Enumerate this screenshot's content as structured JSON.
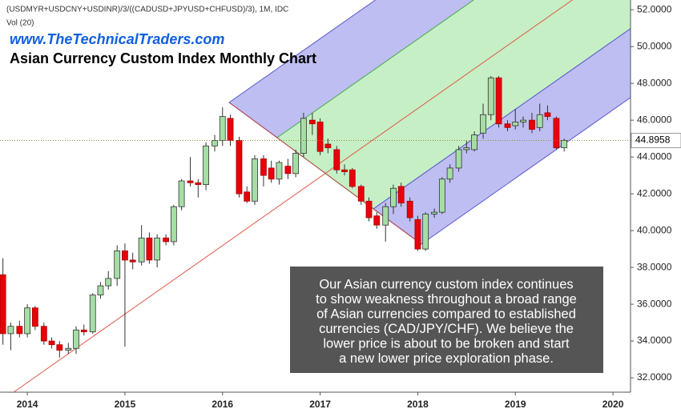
{
  "chart_data": {
    "type": "candlestick",
    "header": "(USDMYR+USDCNY+USDINR)/3/((CADUSD+JPYUSD+CHFUSD)/3), 1M, IDC",
    "volume_label": "Vol (20)",
    "website": "www.TheTechnicalTraders.com",
    "title": "Asian Currency Custom Index Monthly Chart",
    "annotation": [
      "Our Asian currency custom index continues",
      "to show weakness throughout a broad range",
      "of Asian currencies compared to established",
      "currencies (CAD/JPY/CHF).  We believe the",
      "lower price is about to be broken and start",
      "a new lower price exploration phase."
    ],
    "last_price": 44.8958,
    "x": [
      2013.75,
      2013.83,
      2013.92,
      2014,
      2014.08,
      2014.17,
      2014.25,
      2014.33,
      2014.42,
      2014.5,
      2014.58,
      2014.67,
      2014.75,
      2014.83,
      2014.92,
      2015,
      2015.08,
      2015.17,
      2015.25,
      2015.33,
      2015.42,
      2015.5,
      2015.58,
      2015.67,
      2015.75,
      2015.83,
      2015.92,
      2016,
      2016.08,
      2016.17,
      2016.25,
      2016.33,
      2016.42,
      2016.5,
      2016.58,
      2016.67,
      2016.75,
      2016.83,
      2016.92,
      2017,
      2017.08,
      2017.17,
      2017.25,
      2017.33,
      2017.42,
      2017.5,
      2017.58,
      2017.67,
      2017.75,
      2017.83,
      2017.92,
      2018,
      2018.08,
      2018.17,
      2018.25,
      2018.33,
      2018.42,
      2018.5,
      2018.58,
      2018.67,
      2018.75,
      2018.83,
      2018.92,
      2019,
      2019.08,
      2019.17,
      2019.25,
      2019.33,
      2019.42,
      2019.5
    ],
    "open": [
      37.6,
      34.4,
      34.8,
      34.4,
      35.8,
      34.8,
      34.0,
      33.8,
      33.5,
      33.6,
      34.6,
      34.5,
      36.5,
      37.0,
      37.4,
      38.9,
      38.4,
      38.3,
      39.6,
      38.4,
      39.6,
      39.4,
      41.3,
      42.7,
      42.6,
      42.5,
      44.6,
      44.9,
      46.1,
      44.9,
      42.1,
      41.6,
      43.9,
      43.4,
      42.8,
      43.5,
      43.1,
      44.2,
      46.0,
      45.9,
      44.7,
      44.4,
      43.3,
      43.3,
      42.4,
      41.6,
      40.8,
      40.3,
      41.3,
      42.4,
      41.6,
      40.6,
      39.0,
      40.9,
      41.0,
      42.8,
      43.4,
      44.4,
      44.4,
      45.3,
      46.3,
      48.3,
      45.8,
      45.7,
      45.9,
      46.0,
      45.6,
      46.4,
      46.1,
      44.5
    ],
    "high": [
      38.5,
      35.0,
      35.1,
      36.0,
      35.9,
      35.0,
      34.2,
      34.0,
      33.9,
      34.8,
      34.9,
      36.6,
      37.2,
      37.8,
      39.2,
      39.3,
      38.8,
      40.3,
      39.9,
      39.8,
      39.8,
      41.4,
      42.8,
      44.0,
      42.8,
      44.8,
      45.2,
      46.7,
      46.3,
      45.1,
      42.4,
      44.1,
      44.1,
      43.8,
      43.8,
      43.9,
      44.4,
      46.4,
      46.4,
      46.1,
      45.0,
      44.6,
      43.6,
      43.4,
      42.5,
      41.8,
      41.0,
      41.5,
      42.5,
      42.6,
      41.8,
      40.8,
      41.0,
      41.2,
      42.9,
      43.6,
      44.6,
      44.9,
      45.4,
      46.9,
      48.4,
      48.4,
      46.0,
      46.6,
      46.2,
      46.4,
      46.9,
      46.8,
      46.2,
      45.0
    ],
    "low": [
      33.8,
      33.5,
      34.2,
      34.2,
      34.6,
      33.8,
      33.6,
      33.1,
      33.3,
      33.3,
      34.3,
      34.4,
      36.3,
      36.8,
      37.0,
      33.7,
      37.9,
      38.1,
      38.2,
      38.0,
      39.2,
      39.2,
      41.1,
      42.4,
      41.8,
      42.2,
      44.3,
      44.6,
      44.6,
      41.8,
      41.5,
      41.4,
      42.4,
      42.6,
      42.5,
      42.8,
      42.9,
      44.0,
      45.2,
      44.1,
      44.2,
      43.1,
      43.0,
      42.3,
      41.4,
      40.5,
      40.1,
      39.4,
      40.9,
      41.3,
      40.5,
      38.9,
      38.9,
      40.7,
      40.9,
      42.6,
      43.2,
      44.2,
      44.3,
      45.0,
      46.0,
      45.6,
      45.4,
      45.5,
      45.6,
      45.3,
      45.4,
      46.0,
      44.4,
      44.3
    ],
    "close": [
      34.4,
      34.8,
      34.4,
      35.8,
      34.8,
      34.0,
      33.8,
      33.5,
      33.6,
      34.6,
      34.5,
      36.5,
      37.0,
      37.4,
      38.9,
      38.4,
      38.3,
      39.6,
      38.4,
      39.6,
      39.4,
      41.3,
      42.7,
      42.6,
      42.5,
      44.6,
      44.9,
      46.2,
      44.9,
      42.0,
      41.6,
      43.9,
      43.0,
      42.8,
      43.7,
      43.1,
      44.2,
      46.1,
      45.8,
      44.3,
      44.5,
      43.3,
      43.2,
      42.4,
      41.6,
      40.7,
      40.3,
      41.3,
      42.3,
      41.5,
      40.7,
      39.0,
      40.9,
      41.0,
      42.8,
      43.4,
      44.4,
      44.5,
      45.2,
      46.3,
      48.3,
      45.8,
      45.6,
      45.9,
      46.0,
      45.5,
      46.3,
      46.2,
      44.5,
      44.9
    ],
    "up_color": "#a5dea5",
    "down_color": "#e8000b",
    "xlim": [
      2013.72,
      2020.18
    ],
    "ylim": [
      31.22,
      52.53
    ],
    "yticks": [
      {
        "value": 32,
        "label": "32.0000"
      },
      {
        "value": 34,
        "label": "34.0000"
      },
      {
        "value": 36,
        "label": "36.0000"
      },
      {
        "value": 38,
        "label": "38.0000"
      },
      {
        "value": 40,
        "label": "40.0000"
      },
      {
        "value": 42,
        "label": "42.0000"
      },
      {
        "value": 44,
        "label": "44.0000"
      },
      {
        "value": 46,
        "label": "46.0000"
      },
      {
        "value": 48,
        "label": "48.0000"
      },
      {
        "value": 50,
        "label": "50.0000"
      },
      {
        "value": 52,
        "label": "52.0000"
      }
    ],
    "xticks": [
      2014,
      2015,
      2016,
      2017,
      2018,
      2019,
      2020
    ]
  }
}
